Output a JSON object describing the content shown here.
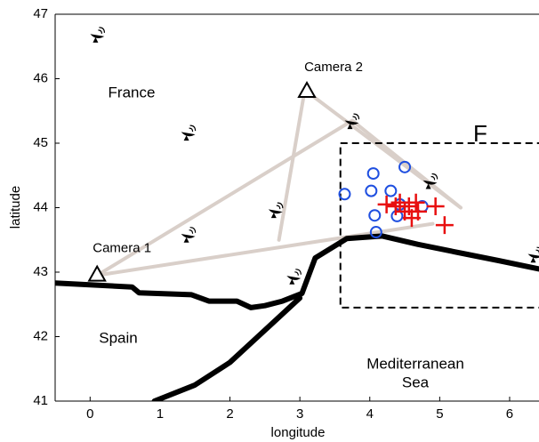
{
  "chart_data": {
    "type": "scatter",
    "xlabel": "longitude",
    "ylabel": "latitude",
    "xlim": [
      -0.5,
      6.42
    ],
    "ylim": [
      41,
      47
    ],
    "xticks": [
      0,
      1,
      2,
      3,
      4,
      5,
      6
    ],
    "yticks": [
      41,
      42,
      43,
      44,
      45,
      46,
      47
    ],
    "annotations": [
      "France",
      "Spain",
      "Mediterranean",
      "Sea"
    ],
    "cameras": {
      "labels": [
        "Camera 1",
        "Camera 2"
      ],
      "x": [
        0.1,
        3.1
      ],
      "y": [
        42.95,
        45.8
      ],
      "color": "#000000"
    },
    "sensors": {
      "x": [
        0.09,
        1.39,
        1.39,
        2.64,
        2.9,
        3.73,
        4.85,
        6.35
      ],
      "y": [
        46.67,
        45.15,
        43.57,
        43.95,
        42.92,
        45.33,
        44.4,
        43.26
      ],
      "color": "#000000"
    },
    "sight_lines": {
      "x": [
        0.1,
        3.75,
        5.3,
        null,
        3.05,
        2.7,
        null,
        0.1,
        4.9,
        null,
        3.1,
        5.3
      ],
      "y": [
        42.95,
        45.35,
        44.0,
        null,
        45.7,
        43.5,
        null,
        42.95,
        43.75,
        null,
        45.8,
        44.0
      ],
      "color": "#d9cfc9"
    },
    "coast": {
      "x": [
        -0.5,
        0.6,
        0.7,
        1.45,
        1.7,
        2.1,
        2.3,
        2.5,
        2.75,
        3.03,
        3.22,
        3.67,
        4.18,
        4.69,
        5.33,
        5.84,
        6.42,
        null,
        3.0,
        2.6,
        2.0,
        1.5,
        0.92
      ],
      "y": [
        42.83,
        42.77,
        42.68,
        42.65,
        42.55,
        42.55,
        42.45,
        42.48,
        42.55,
        42.67,
        43.22,
        43.52,
        43.56,
        43.43,
        43.29,
        43.18,
        43.05,
        null,
        42.6,
        42.2,
        41.6,
        41.25,
        41.0
      ],
      "color": "#000000"
    },
    "region": {
      "label": "F",
      "x": [
        3.58,
        6.6
      ],
      "y": [
        42.45,
        45.0
      ]
    },
    "circles": {
      "x": [
        4.05,
        4.5,
        3.64,
        4.02,
        4.3,
        4.43,
        4.07,
        4.39,
        4.09,
        4.75
      ],
      "y": [
        44.53,
        44.63,
        44.21,
        44.26,
        44.26,
        44.05,
        43.88,
        43.87,
        43.62,
        44.02
      ],
      "color": "#1f4fe0"
    },
    "crosses": {
      "x": [
        4.24,
        4.43,
        4.56,
        4.66,
        4.69,
        4.5,
        4.6,
        4.94,
        5.07,
        4.37
      ],
      "y": [
        44.05,
        44.08,
        44.02,
        44.08,
        43.94,
        43.94,
        43.84,
        44.02,
        43.73,
        44.02
      ],
      "color": "#e81010"
    }
  }
}
